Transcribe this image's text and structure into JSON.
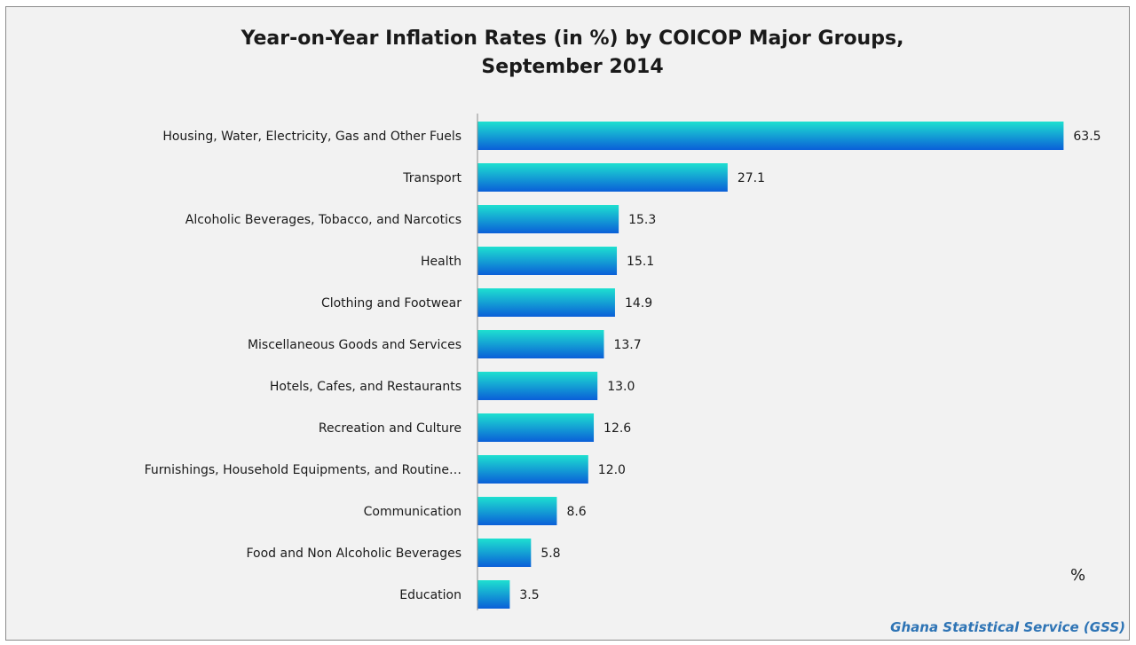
{
  "chart_data": {
    "type": "bar",
    "orientation": "horizontal",
    "title": "Year-on-Year Inflation Rates (in %) by  COICOP  Major Groups,\nSeptember 2014",
    "unit_label": "%",
    "source": "Ghana Statistical Service (GSS)",
    "categories": [
      "Housing, Water, Electricity, Gas and Other Fuels",
      "Transport",
      "Alcoholic Beverages, Tobacco, and Narcotics",
      "Health",
      "Clothing and Footwear",
      "Miscellaneous Goods and Services",
      "Hotels, Cafes, and Restaurants",
      "Recreation and Culture",
      "Furnishings, Household Equipments, and Routine…",
      "Communication",
      "Food and Non Alcoholic Beverages",
      "Education"
    ],
    "values": [
      63.5,
      27.1,
      15.3,
      15.1,
      14.9,
      13.7,
      13.0,
      12.6,
      12.0,
      8.6,
      5.8,
      3.5
    ],
    "value_labels": [
      "63.5",
      "27.1",
      "15.3",
      "15.1",
      "14.9",
      "13.7",
      "13.0",
      "12.6",
      "12.0",
      "8.6",
      "5.8",
      "3.5"
    ],
    "xlim": [
      0,
      70
    ],
    "grid": false,
    "legend": "none",
    "colors": {
      "bar_top": "#1ee0d0",
      "bar_bottom": "#0a5fd8"
    }
  }
}
